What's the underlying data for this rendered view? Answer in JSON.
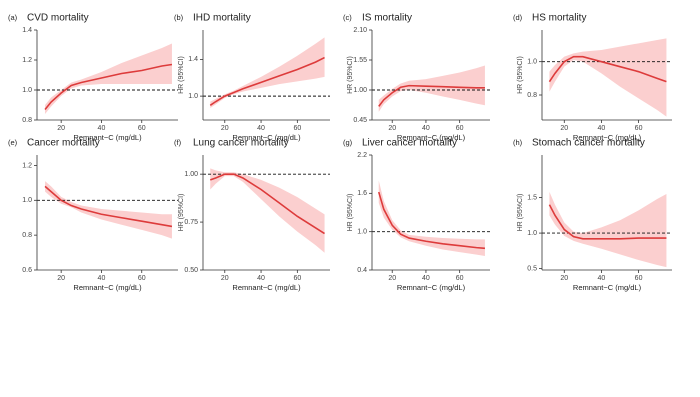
{
  "chart_data": [
    {
      "type": "line",
      "label": "(a)",
      "title": "CVD mortality",
      "x_label": "Remnant−C (mg/dL)",
      "x": [
        12,
        15,
        20,
        25,
        30,
        40,
        50,
        60,
        70,
        75
      ],
      "values": [
        0.87,
        0.92,
        0.98,
        1.03,
        1.05,
        1.08,
        1.11,
        1.13,
        1.16,
        1.17
      ],
      "ci_lower": [
        0.84,
        0.89,
        0.96,
        1.01,
        1.03,
        1.04,
        1.04,
        1.04,
        1.04,
        1.04
      ],
      "ci_upper": [
        0.9,
        0.95,
        1.0,
        1.05,
        1.07,
        1.12,
        1.18,
        1.23,
        1.28,
        1.31
      ],
      "color": "#dd3b3b",
      "band_color": "#fbcfcf",
      "reference_line": 1,
      "xlim": [
        8,
        78
      ],
      "xticks": [
        20,
        40,
        60
      ],
      "ylim": [
        0.8,
        1.4
      ],
      "yticks": [
        {
          "value": 0.8,
          "label": "0.8"
        },
        {
          "value": 1,
          "label": "1.0"
        },
        {
          "value": 1.2,
          "label": "1.2"
        },
        {
          "value": 1.4,
          "label": "1.4"
        }
      ]
    },
    {
      "type": "line",
      "label": "(b)",
      "title": "IHD mortality",
      "x_label": "Remnant−C (mg/dL)",
      "y_label": "HR (95%CI)",
      "x": [
        12,
        15,
        20,
        25,
        30,
        40,
        50,
        60,
        70,
        75
      ],
      "values": [
        0.9,
        0.94,
        1.0,
        1.04,
        1.08,
        1.15,
        1.22,
        1.29,
        1.37,
        1.42
      ],
      "ci_lower": [
        0.87,
        0.91,
        0.98,
        1.02,
        1.05,
        1.09,
        1.13,
        1.16,
        1.19,
        1.21
      ],
      "ci_upper": [
        0.94,
        0.97,
        1.02,
        1.06,
        1.11,
        1.21,
        1.32,
        1.44,
        1.57,
        1.64
      ],
      "color": "#dd3b3b",
      "band_color": "#fbcfcf",
      "reference_line": 1,
      "xlim": [
        8,
        78
      ],
      "xticks": [
        20,
        40,
        60
      ],
      "ylim": [
        0.74,
        1.72
      ],
      "yticks": [
        {
          "value": 1,
          "label": "1.0"
        },
        1.4
      ]
    },
    {
      "type": "line",
      "label": "(c)",
      "title": "IS mortality",
      "x_label": "Remnant−C (mg/dL)",
      "y_label": "HR (95%CI)",
      "x": [
        12,
        15,
        20,
        25,
        30,
        40,
        50,
        60,
        70,
        75
      ],
      "values": [
        0.7,
        0.82,
        0.95,
        1.05,
        1.08,
        1.07,
        1.06,
        1.05,
        1.04,
        1.04
      ],
      "ci_lower": [
        0.6,
        0.74,
        0.88,
        0.98,
        1.0,
        0.95,
        0.88,
        0.82,
        0.75,
        0.72
      ],
      "ci_upper": [
        0.82,
        0.9,
        1.02,
        1.12,
        1.17,
        1.2,
        1.26,
        1.32,
        1.4,
        1.45
      ],
      "color": "#dd3b3b",
      "band_color": "#fbcfcf",
      "reference_line": 1,
      "xlim": [
        8,
        78
      ],
      "xticks": [
        20,
        40,
        60
      ],
      "ylim": [
        0.45,
        2.1
      ],
      "yticks": [
        0.45,
        {
          "value": 1,
          "label": "1.00"
        },
        1.55,
        {
          "value": 2.1,
          "label": "2.10"
        }
      ]
    },
    {
      "type": "line",
      "label": "(d)",
      "title": "HS mortality",
      "x_label": "Remnant−C (mg/dL)",
      "y_label": "HR (95%CI)",
      "x": [
        12,
        15,
        20,
        25,
        30,
        40,
        50,
        60,
        70,
        75
      ],
      "values": [
        0.88,
        0.93,
        1.0,
        1.03,
        1.03,
        1.0,
        0.97,
        0.94,
        0.9,
        0.88
      ],
      "ci_lower": [
        0.82,
        0.88,
        0.97,
        1.01,
        1.0,
        0.93,
        0.85,
        0.78,
        0.71,
        0.67
      ],
      "ci_upper": [
        0.94,
        0.98,
        1.03,
        1.05,
        1.06,
        1.07,
        1.09,
        1.11,
        1.13,
        1.14
      ],
      "color": "#dd3b3b",
      "band_color": "#fbcfcf",
      "reference_line": 1,
      "xlim": [
        8,
        78
      ],
      "xticks": [
        20,
        40,
        60
      ],
      "ylim": [
        0.65,
        1.19
      ],
      "yticks": [
        0.8,
        {
          "value": 1,
          "label": "1.0"
        }
      ]
    },
    {
      "type": "line",
      "label": "(e)",
      "title": "Cancer mortality",
      "x_label": "Remnant−C (mg/dL)",
      "x": [
        12,
        15,
        20,
        25,
        30,
        40,
        50,
        60,
        70,
        75
      ],
      "values": [
        1.08,
        1.05,
        1.0,
        0.97,
        0.95,
        0.92,
        0.9,
        0.88,
        0.86,
        0.85
      ],
      "ci_lower": [
        1.05,
        1.02,
        0.98,
        0.96,
        0.93,
        0.89,
        0.86,
        0.83,
        0.8,
        0.78
      ],
      "ci_upper": [
        1.11,
        1.08,
        1.02,
        0.99,
        0.97,
        0.95,
        0.94,
        0.93,
        0.92,
        0.92
      ],
      "color": "#dd3b3b",
      "band_color": "#fbcfcf",
      "reference_line": 1,
      "xlim": [
        8,
        78
      ],
      "xticks": [
        20,
        40,
        60
      ],
      "ylim": [
        0.6,
        1.26
      ],
      "yticks": [
        0.6,
        0.8,
        {
          "value": 1,
          "label": "1.0"
        },
        1.2
      ]
    },
    {
      "type": "line",
      "label": "(f)",
      "title": "Lung cancer mortality",
      "x_label": "Remnant−C (mg/dL)",
      "y_label": "HR (95%CI)",
      "x": [
        12,
        15,
        20,
        25,
        30,
        40,
        50,
        60,
        70,
        75
      ],
      "values": [
        0.97,
        0.98,
        1.0,
        1.0,
        0.98,
        0.92,
        0.85,
        0.78,
        0.72,
        0.69
      ],
      "ci_lower": [
        0.92,
        0.95,
        0.99,
        0.99,
        0.96,
        0.87,
        0.78,
        0.7,
        0.63,
        0.59
      ],
      "ci_upper": [
        1.03,
        1.02,
        1.01,
        1.01,
        1.0,
        0.97,
        0.93,
        0.88,
        0.82,
        0.79
      ],
      "color": "#dd3b3b",
      "band_color": "#fbcfcf",
      "reference_line": 1,
      "xlim": [
        8,
        78
      ],
      "xticks": [
        20,
        40,
        60
      ],
      "ylim": [
        0.5,
        1.1
      ],
      "yticks": [
        {
          "value": 0.5,
          "label": "0.50"
        },
        0.75,
        {
          "value": 1,
          "label": "1.00"
        }
      ]
    },
    {
      "type": "line",
      "label": "(g)",
      "title": "Liver cancer mortality",
      "x_label": "Remnant−C (mg/dL)",
      "y_label": "HR (95%CI)",
      "x": [
        12,
        15,
        20,
        25,
        30,
        40,
        50,
        60,
        70,
        75
      ],
      "values": [
        1.62,
        1.35,
        1.1,
        0.96,
        0.9,
        0.85,
        0.81,
        0.78,
        0.75,
        0.74
      ],
      "ci_lower": [
        1.45,
        1.22,
        1.03,
        0.91,
        0.85,
        0.78,
        0.72,
        0.68,
        0.64,
        0.62
      ],
      "ci_upper": [
        1.8,
        1.48,
        1.18,
        1.02,
        0.95,
        0.92,
        0.9,
        0.89,
        0.88,
        0.88
      ],
      "color": "#dd3b3b",
      "band_color": "#fbcfcf",
      "reference_line": 1,
      "xlim": [
        8,
        78
      ],
      "xticks": [
        20,
        40,
        60
      ],
      "ylim": [
        0.4,
        2.2
      ],
      "yticks": [
        0.4,
        {
          "value": 1,
          "label": "1.0"
        },
        1.6,
        2.2
      ]
    },
    {
      "type": "line",
      "label": "(h)",
      "title": "Stomach cancer mortality",
      "x_label": "Remnant−C (mg/dL)",
      "y_label": "HR (95%CI)",
      "x": [
        12,
        15,
        20,
        25,
        30,
        40,
        50,
        60,
        70,
        75
      ],
      "values": [
        1.4,
        1.25,
        1.05,
        0.95,
        0.92,
        0.92,
        0.92,
        0.93,
        0.93,
        0.93
      ],
      "ci_lower": [
        1.25,
        1.12,
        0.96,
        0.89,
        0.85,
        0.78,
        0.7,
        0.62,
        0.55,
        0.52
      ],
      "ci_upper": [
        1.58,
        1.4,
        1.15,
        1.02,
        1.0,
        1.08,
        1.18,
        1.32,
        1.48,
        1.55
      ],
      "color": "#dd3b3b",
      "band_color": "#fbcfcf",
      "reference_line": 1,
      "xlim": [
        8,
        78
      ],
      "xticks": [
        20,
        40,
        60
      ],
      "ylim": [
        0.48,
        2.1
      ],
      "yticks": [
        0.5,
        {
          "value": 1,
          "label": "1.0"
        },
        1.5
      ]
    }
  ]
}
